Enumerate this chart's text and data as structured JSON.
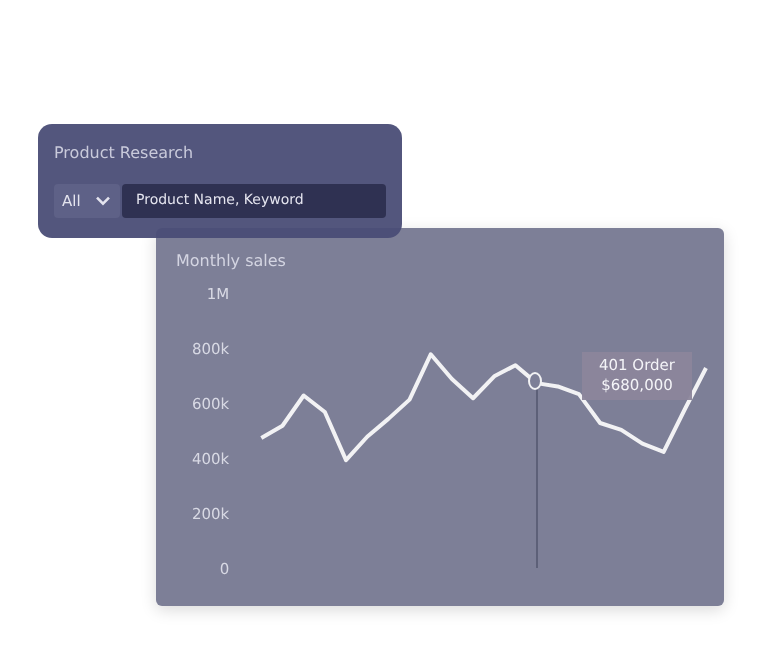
{
  "chart_data": {
    "type": "line",
    "title": "Monthly sales",
    "categories": [
      null,
      null,
      null,
      null,
      null,
      null,
      null,
      null,
      null,
      null,
      null,
      null,
      null,
      null,
      null,
      null,
      null,
      null,
      null,
      null,
      null,
      null
    ],
    "series": [
      {
        "color": "#f2f2f4",
        "values": [
          480000,
          525000,
          635000,
          575000,
          400000,
          485000,
          550000,
          620000,
          785000,
          695000,
          625000,
          705000,
          745000,
          680000,
          668000,
          640000,
          535000,
          510000,
          460000,
          430000,
          585000,
          735000
        ]
      }
    ],
    "ylim": [
      0,
      1000000
    ],
    "yticks": [
      {
        "value": 0,
        "label": "0"
      },
      {
        "value": 200000,
        "label": "200k"
      },
      {
        "value": 400000,
        "label": "400k"
      },
      {
        "value": 600000,
        "label": "600k"
      },
      {
        "value": 800000,
        "label": "800k"
      },
      {
        "value": 1000000,
        "label": "1M"
      }
    ],
    "tick_labels": "y",
    "grid": false,
    "legend": false,
    "marker": "none",
    "line_style": "solid",
    "annotations": [
      "401 Order\n$680,000",
      "Product Research",
      "All",
      "Product Name, Keyword"
    ]
  }
}
